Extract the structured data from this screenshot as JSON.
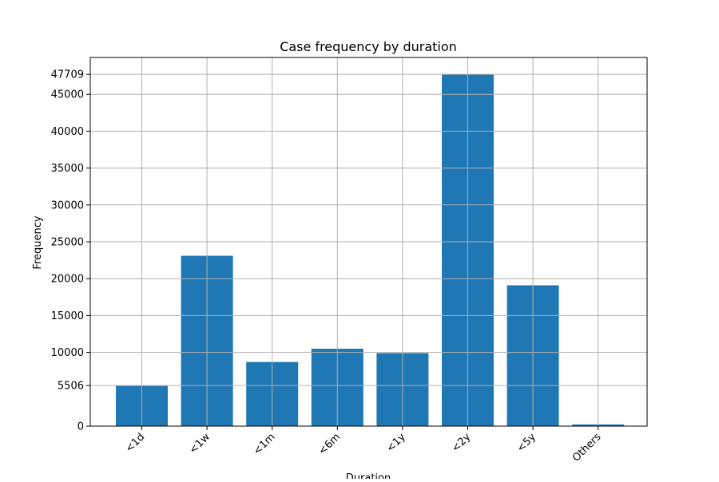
{
  "chart_data": {
    "type": "bar",
    "title": "Case frequency by duration",
    "xlabel": "Duration",
    "ylabel": "Frequency",
    "categories": [
      "<1d",
      "<1w",
      "<1m",
      "<6m",
      "<1y",
      "<2y",
      "<5y",
      "Others"
    ],
    "values": [
      5506,
      23100,
      8700,
      10500,
      9900,
      47709,
      19100,
      230
    ],
    "ylim": [
      0,
      50000
    ],
    "yticks": [
      0,
      5506,
      10000,
      15000,
      20000,
      25000,
      30000,
      35000,
      40000,
      45000,
      47709
    ],
    "ytick_labels": [
      "0",
      "5506",
      "10000",
      "15000",
      "20000",
      "25000",
      "30000",
      "35000",
      "40000",
      "45000",
      "47709"
    ],
    "grid": true,
    "legend": "none",
    "colors": {
      "bar": "#1f77b4",
      "grid": "#b0b0b0",
      "axis": "#000000"
    }
  }
}
